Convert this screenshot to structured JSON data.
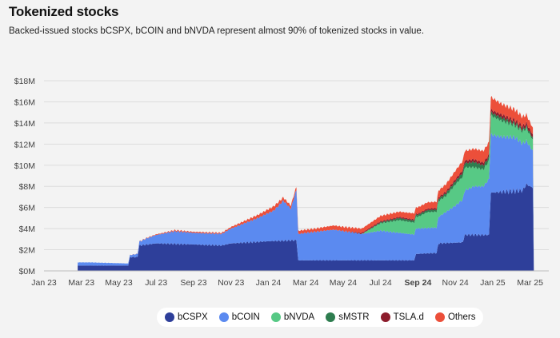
{
  "header": {
    "title": "Tokenized stocks",
    "subtitle": "Backed-issued stocks bCSPX, bCOIN and bNVDA represent almost 90% of tokenized stocks in value."
  },
  "chart_data": {
    "type": "area",
    "stacked": true,
    "title": "Tokenized stocks",
    "ylabel": "",
    "xlabel": "",
    "ylim": [
      0,
      18
    ],
    "y_unit": "$M",
    "y_ticks": [
      0,
      2,
      4,
      6,
      8,
      10,
      12,
      14,
      16,
      18
    ],
    "y_tick_labels": [
      "$0M",
      "$2M",
      "$4M",
      "$6M",
      "$8M",
      "$10M",
      "$12M",
      "$14M",
      "$16M",
      "$18M"
    ],
    "x_range_months": [
      0,
      27.0
    ],
    "x_ticks": [
      0,
      2,
      4,
      6,
      8,
      10,
      12,
      14,
      16,
      18,
      20,
      22,
      24,
      26
    ],
    "x_tick_labels": [
      "Jan 23",
      "Mar 23",
      "May 23",
      "Jul 23",
      "Sep 23",
      "Nov 23",
      "Jan 24",
      "Mar 24",
      "May 24",
      "Jul 24",
      "Sep 24",
      "Nov 24",
      "Jan 25",
      "Mar 25"
    ],
    "x_tick_bold": [
      false,
      false,
      false,
      false,
      false,
      false,
      false,
      false,
      false,
      false,
      true,
      false,
      false,
      false
    ],
    "series": [
      {
        "name": "bCSPX",
        "color": "#2e3f9a",
        "points": [
          [
            1.8,
            0
          ],
          [
            1.8,
            0.5
          ],
          [
            4.5,
            0.5
          ],
          [
            4.6,
            1.3
          ],
          [
            5.0,
            1.3
          ],
          [
            5.1,
            2.4
          ],
          [
            6,
            2.6
          ],
          [
            8,
            2.5
          ],
          [
            9.5,
            2.4
          ],
          [
            10,
            2.6
          ],
          [
            12,
            2.8
          ],
          [
            13.5,
            2.9
          ],
          [
            13.6,
            1.0
          ],
          [
            16,
            1.0
          ],
          [
            18,
            1.0
          ],
          [
            19.8,
            1.0
          ],
          [
            19.9,
            1.6
          ],
          [
            21,
            1.7
          ],
          [
            21.1,
            2.6
          ],
          [
            22.4,
            2.7
          ],
          [
            22.5,
            3.4
          ],
          [
            23.8,
            3.4
          ],
          [
            23.9,
            7.4
          ],
          [
            25.6,
            7.6
          ],
          [
            25.8,
            8.2
          ],
          [
            26.2,
            7.8
          ],
          [
            26.2,
            0
          ]
        ]
      },
      {
        "name": "bCOIN",
        "color": "#5b8af0",
        "points": [
          [
            1.8,
            0
          ],
          [
            1.8,
            0.3
          ],
          [
            2.5,
            0.3
          ],
          [
            4.5,
            0.2
          ],
          [
            4.6,
            0.2
          ],
          [
            5.0,
            0.3
          ],
          [
            5.5,
            0.6
          ],
          [
            7,
            1.2
          ],
          [
            8,
            1.1
          ],
          [
            9.5,
            1.1
          ],
          [
            10.5,
            1.7
          ],
          [
            11.5,
            2.3
          ],
          [
            12.3,
            2.9
          ],
          [
            12.8,
            3.8
          ],
          [
            13.2,
            3.0
          ],
          [
            13.5,
            4.8
          ],
          [
            13.6,
            2.5
          ],
          [
            14.5,
            2.7
          ],
          [
            15.5,
            2.9
          ],
          [
            17,
            2.5
          ],
          [
            18,
            2.8
          ],
          [
            19,
            2.6
          ],
          [
            20,
            2.4
          ],
          [
            21,
            2.4
          ],
          [
            22,
            3.5
          ],
          [
            22.5,
            4.2
          ],
          [
            23,
            4.6
          ],
          [
            23.5,
            4.6
          ],
          [
            23.9,
            5.5
          ],
          [
            24.5,
            5.2
          ],
          [
            25.2,
            5.1
          ],
          [
            25.8,
            4.1
          ],
          [
            26.2,
            3.4
          ],
          [
            26.2,
            0
          ]
        ]
      },
      {
        "name": "bNVDA",
        "color": "#57c985",
        "points": [
          [
            1.8,
            0
          ],
          [
            2.5,
            0
          ],
          [
            4.5,
            0
          ],
          [
            7,
            0
          ],
          [
            10,
            0
          ],
          [
            12,
            0
          ],
          [
            13.5,
            0
          ],
          [
            16,
            0
          ],
          [
            17,
            0
          ],
          [
            18,
            0.7
          ],
          [
            19,
            1.2
          ],
          [
            20,
            1.1
          ],
          [
            20.5,
            1.5
          ],
          [
            21.5,
            1.5
          ],
          [
            22,
            2.0
          ],
          [
            22.5,
            2.2
          ],
          [
            23,
            1.8
          ],
          [
            23.5,
            1.6
          ],
          [
            23.9,
            1.8
          ],
          [
            24.5,
            1.5
          ],
          [
            25.2,
            1.1
          ],
          [
            25.8,
            1.2
          ],
          [
            26.2,
            1.0
          ],
          [
            26.2,
            0
          ]
        ]
      },
      {
        "name": "sMSTR",
        "color": "#2e7d4f",
        "points": [
          [
            1.8,
            0
          ],
          [
            4.5,
            0
          ],
          [
            10,
            0
          ],
          [
            13.5,
            0
          ],
          [
            17,
            0
          ],
          [
            18,
            0.1
          ],
          [
            19,
            0.2
          ],
          [
            20,
            0.2
          ],
          [
            21,
            0.2
          ],
          [
            22,
            0.3
          ],
          [
            22.5,
            0.4
          ],
          [
            23,
            0.5
          ],
          [
            23.9,
            0.3
          ],
          [
            24.5,
            0.3
          ],
          [
            25.2,
            0.2
          ],
          [
            25.8,
            0.2
          ],
          [
            26.2,
            0.2
          ],
          [
            26.2,
            0
          ]
        ]
      },
      {
        "name": "TSLA.d",
        "color": "#8c1c2c",
        "points": [
          [
            1.8,
            0
          ],
          [
            4.5,
            0
          ],
          [
            10,
            0
          ],
          [
            13.5,
            0
          ],
          [
            16,
            0
          ],
          [
            17,
            0.1
          ],
          [
            18,
            0.1
          ],
          [
            19,
            0.1
          ],
          [
            20,
            0.1
          ],
          [
            21,
            0.15
          ],
          [
            22,
            0.2
          ],
          [
            22.5,
            0.25
          ],
          [
            23,
            0.25
          ],
          [
            23.9,
            0.25
          ],
          [
            24.5,
            0.3
          ],
          [
            25.2,
            0.3
          ],
          [
            25.8,
            0.3
          ],
          [
            26.2,
            0.3
          ],
          [
            26.2,
            0
          ]
        ]
      },
      {
        "name": "Others",
        "color": "#ec4f3a",
        "points": [
          [
            1.8,
            0
          ],
          [
            4.5,
            0
          ],
          [
            7,
            0.1
          ],
          [
            9.5,
            0.1
          ],
          [
            10.5,
            0.2
          ],
          [
            11.5,
            0.3
          ],
          [
            12.3,
            0.4
          ],
          [
            12.8,
            0.3
          ],
          [
            13.2,
            0.3
          ],
          [
            13.5,
            0.3
          ],
          [
            13.6,
            0.3
          ],
          [
            14.5,
            0.3
          ],
          [
            15.5,
            0.4
          ],
          [
            17,
            0.4
          ],
          [
            18,
            0.5
          ],
          [
            19,
            0.5
          ],
          [
            20,
            0.6
          ],
          [
            21,
            0.6
          ],
          [
            22,
            0.8
          ],
          [
            22.5,
            0.9
          ],
          [
            23,
            1.0
          ],
          [
            23.9,
            1.2
          ],
          [
            24.5,
            1.0
          ],
          [
            25.2,
            1.0
          ],
          [
            25.8,
            0.8
          ],
          [
            26.2,
            0.6
          ],
          [
            26.2,
            0
          ]
        ]
      }
    ]
  },
  "legend": {
    "items": [
      {
        "label": "bCSPX",
        "color": "#2e3f9a"
      },
      {
        "label": "bCOIN",
        "color": "#5b8af0"
      },
      {
        "label": "bNVDA",
        "color": "#57c985"
      },
      {
        "label": "sMSTR",
        "color": "#2e7d4f"
      },
      {
        "label": "TSLA.d",
        "color": "#8c1c2c"
      },
      {
        "label": "Others",
        "color": "#ec4f3a"
      }
    ]
  }
}
